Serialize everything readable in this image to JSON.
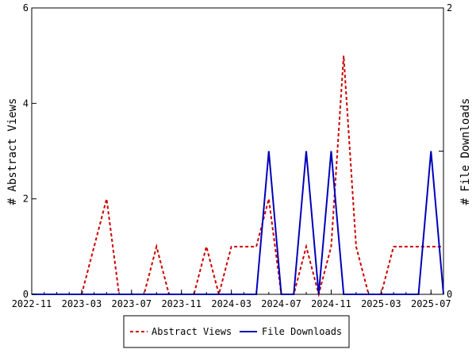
{
  "chart_data": {
    "type": "line",
    "title": "",
    "x": [
      "2022-11",
      "2022-12",
      "2023-01",
      "2023-02",
      "2023-03",
      "2023-04",
      "2023-05",
      "2023-06",
      "2023-07",
      "2023-08",
      "2023-09",
      "2023-10",
      "2023-11",
      "2023-12",
      "2024-01",
      "2024-02",
      "2024-03",
      "2024-04",
      "2024-05",
      "2024-06",
      "2024-07",
      "2024-08",
      "2024-09",
      "2024-10",
      "2024-11",
      "2024-12",
      "2025-01",
      "2025-02",
      "2025-03",
      "2025-04",
      "2025-05",
      "2025-06",
      "2025-07",
      "2025-08"
    ],
    "x_ticks": [
      "2022-11",
      "2023-03",
      "2023-07",
      "2023-11",
      "2024-03",
      "2024-07",
      "2024-11",
      "2025-03",
      "2025-07"
    ],
    "ylabel_left": "# Abstract Views",
    "ylabel_right": "# File Downloads",
    "ylim_left": [
      0,
      6
    ],
    "ylim_right": [
      0,
      2
    ],
    "yticks_left": [
      "0",
      "2",
      "4",
      "6"
    ],
    "yticks_right": [
      "0",
      "1",
      "2"
    ],
    "grid": false,
    "legend_position": "bottom",
    "series": [
      {
        "name": "Abstract Views",
        "axis": "left",
        "color": "#cc0000",
        "style": "dashed",
        "values": [
          0,
          0,
          0,
          0,
          0,
          1,
          2,
          0,
          0,
          0,
          1,
          0,
          0,
          0,
          1,
          0,
          1,
          1,
          1,
          2,
          0,
          0,
          1,
          0,
          1,
          5,
          1,
          0,
          0,
          1,
          1,
          1,
          1,
          1
        ]
      },
      {
        "name": "File Downloads",
        "axis": "right",
        "color": "#0000bb",
        "style": "solid",
        "values": [
          0,
          0,
          0,
          0,
          0,
          0,
          0,
          0,
          0,
          0,
          0,
          0,
          0,
          0,
          0,
          0,
          0,
          0,
          0,
          1,
          0,
          0,
          1,
          0,
          1,
          0,
          0,
          0,
          0,
          0,
          0,
          0,
          1,
          0
        ]
      }
    ]
  }
}
